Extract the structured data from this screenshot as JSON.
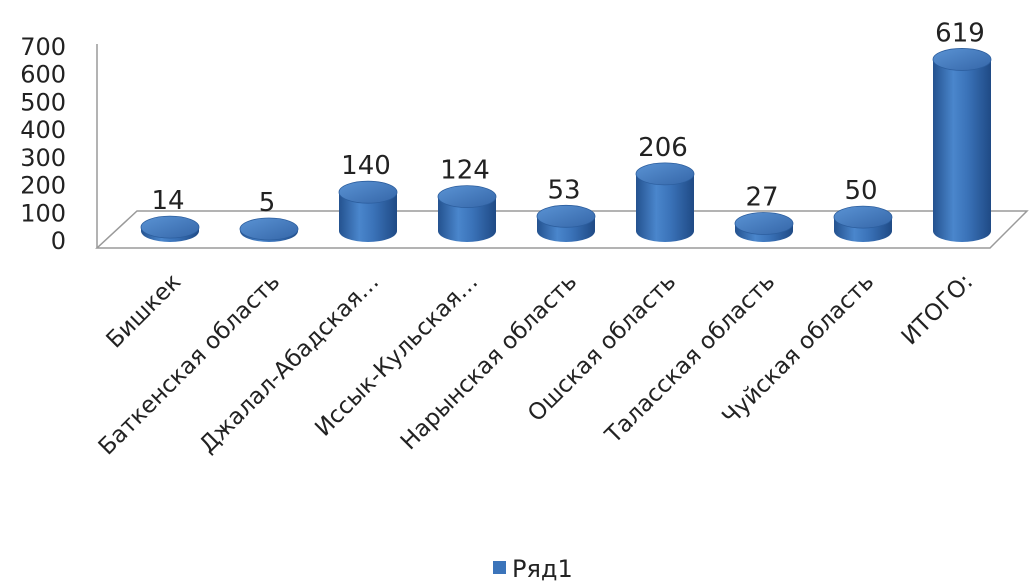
{
  "chart_data": {
    "type": "bar",
    "style": "3d-cylinder",
    "categories": [
      "Бишкек",
      "Баткенская область",
      "Джалал-Абадская…",
      "Иссык-Кульская…",
      "Нарынская область",
      "Ошская область",
      "Таласская область",
      "Чуйская область",
      "ИТОГО:"
    ],
    "series": [
      {
        "name": "Ряд1",
        "values": [
          14,
          5,
          140,
          124,
          53,
          206,
          27,
          50,
          619
        ],
        "color": "#3b74ba"
      }
    ],
    "data_labels": [
      "14",
      "5",
      "140",
      "124",
      "53",
      "206",
      "27",
      "50",
      "619"
    ],
    "y_ticks": [
      "0",
      "100",
      "200",
      "300",
      "400",
      "500",
      "600",
      "700"
    ],
    "ylim": [
      0,
      700
    ],
    "legend": {
      "position": "bottom",
      "label": "Ряд1"
    },
    "grid": false
  }
}
